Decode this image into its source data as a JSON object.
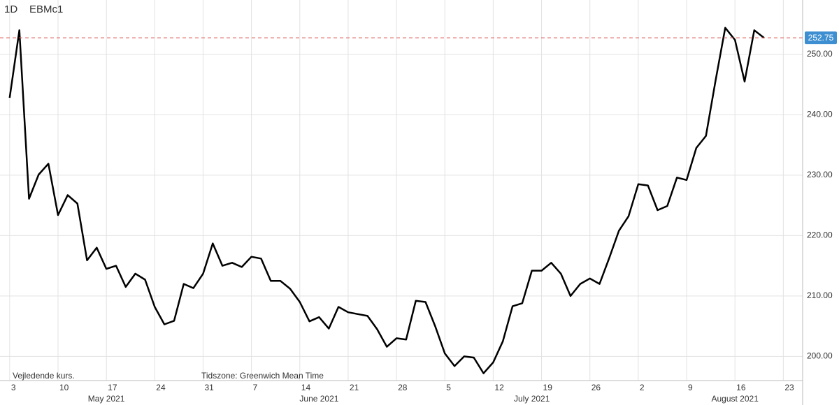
{
  "chart_data": {
    "type": "line",
    "interval": "1D",
    "symbol": "EBMc1",
    "note": "Vejledende kurs.",
    "timezone": "Tidszone: Greenwich Mean Time",
    "color": "#000000",
    "grid": true,
    "x": [
      "2021-05-03",
      "2021-05-04",
      "2021-05-05",
      "2021-05-06",
      "2021-05-07",
      "2021-05-10",
      "2021-05-11",
      "2021-05-12",
      "2021-05-13",
      "2021-05-14",
      "2021-05-17",
      "2021-05-18",
      "2021-05-19",
      "2021-05-20",
      "2021-05-21",
      "2021-05-24",
      "2021-05-25",
      "2021-05-26",
      "2021-05-27",
      "2021-05-28",
      "2021-05-31",
      "2021-06-01",
      "2021-06-02",
      "2021-06-03",
      "2021-06-04",
      "2021-06-07",
      "2021-06-08",
      "2021-06-09",
      "2021-06-10",
      "2021-06-11",
      "2021-06-14",
      "2021-06-15",
      "2021-06-16",
      "2021-06-17",
      "2021-06-18",
      "2021-06-21",
      "2021-06-22",
      "2021-06-23",
      "2021-06-24",
      "2021-06-25",
      "2021-06-28",
      "2021-06-29",
      "2021-06-30",
      "2021-07-01",
      "2021-07-02",
      "2021-07-05",
      "2021-07-06",
      "2021-07-07",
      "2021-07-08",
      "2021-07-09",
      "2021-07-12",
      "2021-07-13",
      "2021-07-14",
      "2021-07-15",
      "2021-07-16",
      "2021-07-19",
      "2021-07-20",
      "2021-07-21",
      "2021-07-22",
      "2021-07-23",
      "2021-07-26",
      "2021-07-27",
      "2021-07-28",
      "2021-07-29",
      "2021-07-30",
      "2021-08-02",
      "2021-08-03",
      "2021-08-04",
      "2021-08-05",
      "2021-08-06",
      "2021-08-09",
      "2021-08-10",
      "2021-08-11",
      "2021-08-12",
      "2021-08-13",
      "2021-08-16",
      "2021-08-17",
      "2021-08-18",
      "2021-08-19"
    ],
    "values": [
      242.8,
      254.0,
      226.1,
      230.1,
      231.9,
      223.4,
      226.7,
      225.3,
      215.9,
      218.0,
      214.5,
      215.0,
      211.5,
      213.7,
      212.7,
      208.2,
      205.3,
      205.9,
      212.0,
      211.3,
      213.7,
      218.7,
      215.0,
      215.5,
      214.8,
      216.5,
      216.2,
      212.5,
      212.5,
      211.2,
      209.0,
      205.8,
      206.5,
      204.6,
      208.2,
      207.3,
      207.0,
      206.7,
      204.5,
      201.6,
      203.0,
      202.8,
      209.2,
      209.0,
      205.0,
      200.5,
      198.4,
      200.0,
      199.8,
      197.2,
      199.0,
      202.5,
      208.3,
      208.8,
      214.2,
      214.2,
      215.5,
      213.7,
      210.0,
      212.0,
      212.9,
      212.0,
      216.3,
      220.8,
      223.2,
      228.5,
      228.3,
      224.2,
      224.9,
      229.6,
      229.2,
      234.5,
      236.5,
      245.7,
      254.4,
      252.4,
      245.5,
      254.0,
      252.75
    ],
    "xlim": [
      "2021-04-30",
      "2021-08-25"
    ],
    "xticks": [
      {
        "value": "2021-05-03",
        "label": "3"
      },
      {
        "value": "2021-05-10",
        "label": "10"
      },
      {
        "value": "2021-05-17",
        "label": "17"
      },
      {
        "value": "2021-05-24",
        "label": "24"
      },
      {
        "value": "2021-05-31",
        "label": "31"
      },
      {
        "value": "2021-06-07",
        "label": "7"
      },
      {
        "value": "2021-06-14",
        "label": "14"
      },
      {
        "value": "2021-06-21",
        "label": "21"
      },
      {
        "value": "2021-06-28",
        "label": "28"
      },
      {
        "value": "2021-07-05",
        "label": "5"
      },
      {
        "value": "2021-07-12",
        "label": "12"
      },
      {
        "value": "2021-07-19",
        "label": "19"
      },
      {
        "value": "2021-07-26",
        "label": "26"
      },
      {
        "value": "2021-08-02",
        "label": "2"
      },
      {
        "value": "2021-08-09",
        "label": "9"
      },
      {
        "value": "2021-08-16",
        "label": "16"
      },
      {
        "value": "2021-08-23",
        "label": "23"
      }
    ],
    "month_ticks": [
      {
        "value": "2021-05-17",
        "label": "May 2021"
      },
      {
        "value": "2021-06-16",
        "label": "June 2021"
      },
      {
        "value": "2021-07-16",
        "label": "July 2021"
      },
      {
        "value": "2021-08-16",
        "label": "August 2021"
      }
    ],
    "ylim": [
      196,
      259
    ],
    "yticks": [
      {
        "value": 200,
        "label": "200.00"
      },
      {
        "value": 210,
        "label": "210.00"
      },
      {
        "value": 220,
        "label": "220.00"
      },
      {
        "value": 230,
        "label": "230.00"
      },
      {
        "value": 240,
        "label": "240.00"
      },
      {
        "value": 250,
        "label": "250.00"
      }
    ]
  }
}
